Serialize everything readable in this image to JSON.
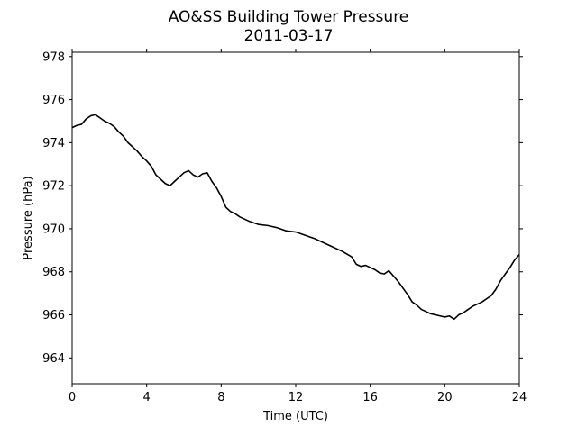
{
  "chart_data": {
    "type": "line",
    "title": "AO&SS Building Tower Pressure",
    "subtitle": "2011-03-17",
    "xlabel": "Time (UTC)",
    "ylabel": "Pressure (hPa)",
    "xlim": [
      0,
      24
    ],
    "ylim": [
      962.8,
      978.2
    ],
    "xticks": [
      0,
      4,
      8,
      12,
      16,
      20,
      24
    ],
    "yticks": [
      964,
      966,
      968,
      970,
      972,
      974,
      976,
      978
    ],
    "grid": false,
    "line_color": "#000000",
    "series": [
      {
        "x": [
          0,
          0.25,
          0.5,
          0.75,
          1.0,
          1.25,
          1.5,
          1.75,
          2.0,
          2.25,
          2.5,
          2.75,
          3.0,
          3.25,
          3.5,
          3.75,
          4.0,
          4.25,
          4.5,
          4.75,
          5.0,
          5.25,
          5.5,
          5.75,
          6.0,
          6.25,
          6.5,
          6.75,
          7.0,
          7.25,
          7.5,
          7.75,
          8.0,
          8.25,
          8.5,
          8.75,
          9.0,
          9.5,
          10.0,
          10.5,
          11.0,
          11.5,
          12.0,
          12.5,
          13.0,
          13.5,
          14.0,
          14.5,
          15.0,
          15.25,
          15.5,
          15.75,
          16.0,
          16.25,
          16.5,
          16.75,
          17.0,
          17.25,
          17.5,
          17.75,
          18.0,
          18.25,
          18.5,
          18.75,
          19.0,
          19.25,
          19.5,
          19.75,
          20.0,
          20.25,
          20.5,
          20.75,
          21.0,
          21.25,
          21.5,
          21.75,
          22.0,
          22.25,
          22.5,
          22.75,
          23.0,
          23.25,
          23.5,
          23.75,
          24.0
        ],
        "y": [
          974.7,
          974.8,
          974.85,
          975.1,
          975.25,
          975.3,
          975.15,
          975.0,
          974.9,
          974.75,
          974.5,
          974.3,
          974.0,
          973.8,
          973.6,
          973.35,
          973.15,
          972.9,
          972.5,
          972.3,
          972.1,
          972.0,
          972.2,
          972.4,
          972.6,
          972.7,
          972.5,
          972.4,
          972.55,
          972.6,
          972.2,
          971.9,
          971.5,
          971.0,
          970.8,
          970.7,
          970.55,
          970.35,
          970.2,
          970.15,
          970.05,
          969.9,
          969.85,
          969.7,
          969.55,
          969.35,
          969.15,
          968.95,
          968.7,
          968.35,
          968.25,
          968.3,
          968.2,
          968.1,
          967.95,
          967.9,
          968.05,
          967.8,
          967.55,
          967.25,
          966.95,
          966.6,
          966.45,
          966.25,
          966.15,
          966.05,
          966.0,
          965.95,
          965.9,
          965.95,
          965.8,
          966.0,
          966.1,
          966.25,
          966.4,
          966.5,
          966.6,
          966.75,
          966.9,
          967.2,
          967.6,
          967.9,
          968.2,
          968.55,
          968.8
        ]
      }
    ]
  }
}
